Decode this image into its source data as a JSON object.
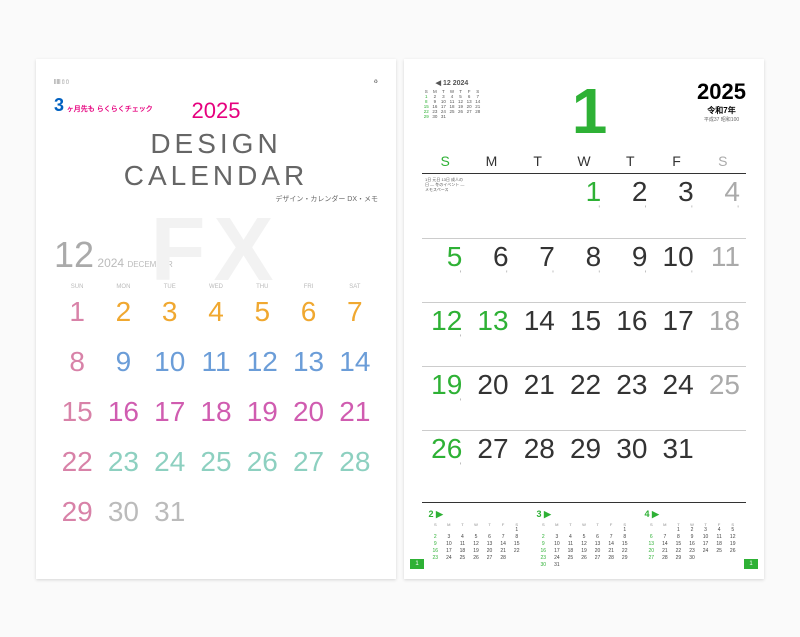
{
  "cover": {
    "badge_num": "3",
    "badge_txt": "ヶ月先も\nらくらくチェック",
    "year": "2025",
    "title": "DESIGN CALENDAR",
    "subtitle": "デザイン・カレンダー DX・メモ",
    "watermark": "FX",
    "month_num": "12",
    "month_year": "2024",
    "month_name": "DECEMBER",
    "dow": [
      "SUN",
      "MON",
      "TUE",
      "WED",
      "THU",
      "FRI",
      "SAT"
    ],
    "rows": [
      {
        "cells": [
          {
            "t": "1",
            "c": "#d882a8"
          },
          {
            "t": "2",
            "c": "#f0a830"
          },
          {
            "t": "3",
            "c": "#f0a830"
          },
          {
            "t": "4",
            "c": "#f0a830"
          },
          {
            "t": "5",
            "c": "#f0a830"
          },
          {
            "t": "6",
            "c": "#f0a830"
          },
          {
            "t": "7",
            "c": "#f0a830"
          }
        ]
      },
      {
        "cells": [
          {
            "t": "8",
            "c": "#d882a8"
          },
          {
            "t": "9",
            "c": "#6b9dd8"
          },
          {
            "t": "10",
            "c": "#6b9dd8"
          },
          {
            "t": "11",
            "c": "#6b9dd8"
          },
          {
            "t": "12",
            "c": "#6b9dd8"
          },
          {
            "t": "13",
            "c": "#6b9dd8"
          },
          {
            "t": "14",
            "c": "#6b9dd8"
          }
        ]
      },
      {
        "cells": [
          {
            "t": "15",
            "c": "#d882a8"
          },
          {
            "t": "16",
            "c": "#d05cb0"
          },
          {
            "t": "17",
            "c": "#d05cb0"
          },
          {
            "t": "18",
            "c": "#d05cb0"
          },
          {
            "t": "19",
            "c": "#d05cb0"
          },
          {
            "t": "20",
            "c": "#d05cb0"
          },
          {
            "t": "21",
            "c": "#d05cb0"
          }
        ]
      },
      {
        "cells": [
          {
            "t": "22",
            "c": "#d882a8"
          },
          {
            "t": "23",
            "c": "#8dd0c0"
          },
          {
            "t": "24",
            "c": "#8dd0c0"
          },
          {
            "t": "25",
            "c": "#8dd0c0"
          },
          {
            "t": "26",
            "c": "#8dd0c0"
          },
          {
            "t": "27",
            "c": "#8dd0c0"
          },
          {
            "t": "28",
            "c": "#8dd0c0"
          }
        ]
      },
      {
        "cells": [
          {
            "t": "29",
            "c": "#d882a8"
          },
          {
            "t": "30",
            "c": "#bbb"
          },
          {
            "t": "31",
            "c": "#bbb"
          },
          {
            "t": "",
            "c": ""
          },
          {
            "t": "",
            "c": ""
          },
          {
            "t": "",
            "c": ""
          },
          {
            "t": "",
            "c": ""
          }
        ]
      }
    ]
  },
  "main": {
    "prev_mini": {
      "title": "◀ 12 2024",
      "cells": [
        "S",
        "M",
        "T",
        "W",
        "T",
        "F",
        "S",
        "1",
        "2",
        "3",
        "4",
        "5",
        "6",
        "7",
        "8",
        "9",
        "10",
        "11",
        "12",
        "13",
        "14",
        "15",
        "16",
        "17",
        "18",
        "19",
        "20",
        "21",
        "22",
        "23",
        "24",
        "25",
        "26",
        "27",
        "28",
        "29",
        "30",
        "31",
        "",
        "",
        "",
        ""
      ]
    },
    "month": "1",
    "month_color": "#2eb135",
    "year": "2025",
    "era": "令和7年",
    "era2": "平成37 昭和100",
    "dow": [
      {
        "t": "S",
        "c": "#2eb135"
      },
      {
        "t": "M",
        "c": "#333"
      },
      {
        "t": "T",
        "c": "#333"
      },
      {
        "t": "W",
        "c": "#333"
      },
      {
        "t": "T",
        "c": "#333"
      },
      {
        "t": "F",
        "c": "#333"
      },
      {
        "t": "S",
        "c": "#aaa"
      }
    ],
    "weeks": [
      [
        {
          "info": true
        },
        {
          "t": "",
          "c": ""
        },
        {
          "t": "",
          "c": ""
        },
        {
          "t": "1",
          "c": "#2eb135",
          "tick": "'"
        },
        {
          "t": "2",
          "c": "#333",
          "tick": "'"
        },
        {
          "t": "3",
          "c": "#333",
          "tick": "'"
        },
        {
          "t": "4",
          "c": "#aaa",
          "tick": "'"
        }
      ],
      [
        {
          "t": "5",
          "c": "#2eb135",
          "tick": "'"
        },
        {
          "t": "6",
          "c": "#333",
          "tick": "'"
        },
        {
          "t": "7",
          "c": "#333",
          "tick": "'"
        },
        {
          "t": "8",
          "c": "#333",
          "tick": "'"
        },
        {
          "t": "9",
          "c": "#333",
          "tick": "'"
        },
        {
          "t": "10",
          "c": "#333",
          "tick": "'"
        },
        {
          "t": "11",
          "c": "#aaa"
        }
      ],
      [
        {
          "t": "12",
          "c": "#2eb135",
          "tick": "'"
        },
        {
          "t": "13",
          "c": "#2eb135"
        },
        {
          "t": "14",
          "c": "#333"
        },
        {
          "t": "15",
          "c": "#333"
        },
        {
          "t": "16",
          "c": "#333"
        },
        {
          "t": "17",
          "c": "#333"
        },
        {
          "t": "18",
          "c": "#aaa"
        }
      ],
      [
        {
          "t": "19",
          "c": "#2eb135",
          "tick": "'"
        },
        {
          "t": "20",
          "c": "#333"
        },
        {
          "t": "21",
          "c": "#333"
        },
        {
          "t": "22",
          "c": "#333"
        },
        {
          "t": "23",
          "c": "#333"
        },
        {
          "t": "24",
          "c": "#333"
        },
        {
          "t": "25",
          "c": "#aaa"
        }
      ],
      [
        {
          "t": "26",
          "c": "#2eb135",
          "tick": "'"
        },
        {
          "t": "27",
          "c": "#333"
        },
        {
          "t": "28",
          "c": "#333"
        },
        {
          "t": "29",
          "c": "#333"
        },
        {
          "t": "30",
          "c": "#333"
        },
        {
          "t": "31",
          "c": "#333"
        },
        {
          "t": "",
          "c": ""
        }
      ]
    ],
    "bottom_minis": [
      {
        "title": "2 ▶",
        "title_color": "#2eb135",
        "cells": [
          "",
          "",
          "",
          "",
          "",
          "",
          "1",
          "2",
          "3",
          "4",
          "5",
          "6",
          "7",
          "8",
          "9",
          "10",
          "11",
          "12",
          "13",
          "14",
          "15",
          "16",
          "17",
          "18",
          "19",
          "20",
          "21",
          "22",
          "23",
          "24",
          "25",
          "26",
          "27",
          "28",
          ""
        ]
      },
      {
        "title": "3 ▶",
        "title_color": "#2eb135",
        "cells": [
          "",
          "",
          "",
          "",
          "",
          "",
          "1",
          "2",
          "3",
          "4",
          "5",
          "6",
          "7",
          "8",
          "9",
          "10",
          "11",
          "12",
          "13",
          "14",
          "15",
          "16",
          "17",
          "18",
          "19",
          "20",
          "21",
          "22",
          "23",
          "24",
          "25",
          "26",
          "27",
          "28",
          "29",
          "30",
          "31",
          "",
          "",
          "",
          "",
          ""
        ]
      },
      {
        "title": "4 ▶",
        "title_color": "#2eb135",
        "cells": [
          "",
          "",
          "1",
          "2",
          "3",
          "4",
          "5",
          "6",
          "7",
          "8",
          "9",
          "10",
          "11",
          "12",
          "13",
          "14",
          "15",
          "16",
          "17",
          "18",
          "19",
          "20",
          "21",
          "22",
          "23",
          "24",
          "25",
          "26",
          "27",
          "28",
          "29",
          "30",
          "",
          "",
          ""
        ]
      }
    ],
    "corner": "1",
    "info_text": "1日 元日\n13日 成人の日\n— 冬のイベント\n— メモスペース"
  }
}
